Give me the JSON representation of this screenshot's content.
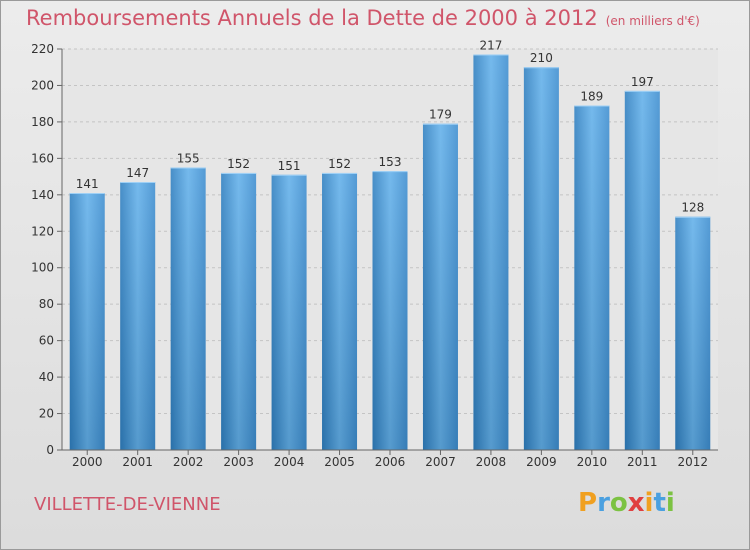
{
  "header": {
    "title": "Remboursements Annuels de la Dette de 2000 à 2012",
    "subtitle": "(en milliers d'€)"
  },
  "footer": {
    "place": "VILLETTE-DE-VIENNE",
    "logo": {
      "letters": [
        "P",
        "r",
        "o",
        "x",
        "i",
        "t",
        "i"
      ],
      "colors": [
        "#f0a020",
        "#4aa0e0",
        "#7cc242",
        "#e04040",
        "#f0a020",
        "#4aa0e0",
        "#7cc242"
      ]
    }
  },
  "chart_data": {
    "type": "bar",
    "title": "Remboursements Annuels de la Dette de 2000 à 2012",
    "categories": [
      "2000",
      "2001",
      "2002",
      "2003",
      "2004",
      "2005",
      "2006",
      "2007",
      "2008",
      "2009",
      "2010",
      "2011",
      "2012"
    ],
    "values": [
      141,
      147,
      155,
      152,
      151,
      152,
      153,
      179,
      217,
      210,
      189,
      197,
      128
    ],
    "ylim": [
      0,
      220
    ],
    "yticks": [
      0,
      20,
      40,
      60,
      80,
      100,
      120,
      140,
      160,
      180,
      200,
      220
    ],
    "grid": true,
    "bar_color": "#4a9ee0"
  }
}
